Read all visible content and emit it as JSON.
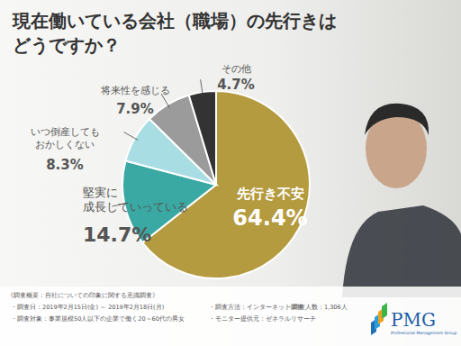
{
  "chart_data": {
    "type": "pie",
    "title": "現在働いている会社（職場）の先行きは\nどうですか？",
    "categories": [
      "先行き不安",
      "堅実に\n成長していっている",
      "いつ倒産しても\nおかしくない",
      "将来性を感じる",
      "その他"
    ],
    "values": [
      64.4,
      14.7,
      8.3,
      7.9,
      4.7
    ],
    "value_labels": [
      "64.4%",
      "14.7%",
      "8.3%",
      "7.9%",
      "4.7%"
    ],
    "colors": [
      "#b59b3f",
      "#3ba9a3",
      "#a9dde4",
      "#9b9b9b",
      "#333333"
    ],
    "data_labels": true,
    "annotations": [
      "《調査概要：自社についての印象に関する意識調査》",
      "・調査日：2019年2月15日(金) ～ 2019年2月18日(月)",
      "・調査方法：インターネット調査",
      "・調査人数：1,306人",
      "・調査対象：事業規模50人以下の企業で働く20～60代の男女",
      "・モニター提供元：ゼネラルリサーチ",
      "PMG",
      "Professional Management Group"
    ]
  }
}
